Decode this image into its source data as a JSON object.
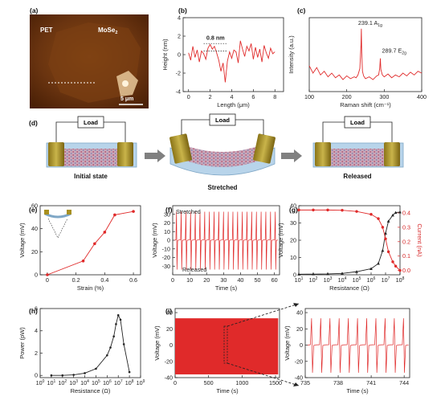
{
  "panel_labels": {
    "a": "(a)",
    "b": "(b)",
    "c": "(c)",
    "d": "(d)",
    "e": "(e)",
    "f": "(f)",
    "g": "(g)",
    "h": "(h)",
    "i": "(i)"
  },
  "afm": {
    "pet_label": "PET",
    "mose2_label": "MoSe",
    "mose2_sub": "2",
    "scale_label": "5 μm"
  },
  "colors": {
    "red": "#e02a2a",
    "black": "#222222",
    "afm_dark": "#5a2a08",
    "afm_light": "#c87a30",
    "substrate": "#b8d4ea",
    "electrode": "#a89020"
  },
  "schematic": {
    "load_label": "Load",
    "states": [
      "Initial state",
      "Stretched",
      "Released"
    ]
  },
  "chart_data": [
    {
      "id": "b",
      "type": "line",
      "xlabel": "Length (μm)",
      "ylabel": "Height (nm)",
      "xlim": [
        -0.5,
        8.8
      ],
      "ylim": [
        -4,
        4
      ],
      "xticks": [
        0,
        2,
        4,
        6,
        8
      ],
      "yticks": [
        -4,
        -2,
        0,
        2,
        4
      ],
      "annotation": "0.8 nm",
      "series": [
        {
          "color": "red",
          "x": [
            0,
            0.2,
            0.4,
            0.6,
            0.8,
            1,
            1.2,
            1.4,
            1.6,
            1.8,
            2,
            2.2,
            2.4,
            2.6,
            2.8,
            3,
            3.2,
            3.4,
            3.6,
            3.8,
            4,
            4.2,
            4.4,
            4.6,
            4.8,
            5,
            5.2,
            5.4,
            5.6,
            5.8,
            6,
            6.2,
            6.4,
            6.6,
            6.8,
            7,
            7.2,
            7.4,
            7.6,
            7.8,
            8
          ],
          "y": [
            0.2,
            -0.6,
            0.9,
            -0.3,
            0.5,
            -0.8,
            0.4,
            0.1,
            -0.5,
            0.7,
            1.1,
            0.6,
            0.9,
            0.2,
            -0.6,
            -1.8,
            -0.9,
            -3.0,
            -0.7,
            0.3,
            -0.4,
            0.5,
            0.3,
            -0.9,
            1.5,
            0.6,
            -0.2,
            0.9,
            0.4,
            1.2,
            -0.5,
            0.8,
            -0.3,
            0.6,
            -0.8,
            1.0,
            0.2,
            -0.4,
            0.7,
            0.1,
            0.3
          ]
        }
      ]
    },
    {
      "id": "c",
      "type": "line",
      "xlabel": "Raman shift (cm⁻¹)",
      "ylabel": "Intensity (a.u.)",
      "xlim": [
        100,
        400
      ],
      "xticks": [
        100,
        200,
        300,
        400
      ],
      "peaks": [
        {
          "x": 239.1,
          "label": "239.1 A",
          "sub": "1g"
        },
        {
          "x": 289.7,
          "label": "289.7 E",
          "sub": "2g"
        }
      ],
      "series": [
        {
          "color": "red",
          "x": [
            100,
            110,
            120,
            130,
            140,
            150,
            160,
            170,
            180,
            190,
            200,
            210,
            220,
            225,
            230,
            235,
            238,
            239,
            240,
            242,
            245,
            250,
            260,
            270,
            280,
            285,
            288,
            289.7,
            291,
            295,
            300,
            310,
            320,
            330,
            340,
            350,
            360,
            370,
            380,
            390,
            400
          ],
          "y": [
            0.48,
            0.4,
            0.46,
            0.38,
            0.42,
            0.36,
            0.4,
            0.35,
            0.38,
            0.33,
            0.37,
            0.34,
            0.36,
            0.35,
            0.38,
            0.45,
            0.7,
            0.88,
            0.62,
            0.42,
            0.37,
            0.34,
            0.36,
            0.33,
            0.37,
            0.38,
            0.45,
            0.56,
            0.44,
            0.38,
            0.36,
            0.39,
            0.35,
            0.38,
            0.36,
            0.4,
            0.37,
            0.41,
            0.38,
            0.42,
            0.4
          ]
        }
      ]
    },
    {
      "id": "e",
      "type": "line",
      "xlabel": "Strain (%)",
      "ylabel": "Voltage (mV)",
      "xlim": [
        -0.05,
        0.65
      ],
      "ylim": [
        0,
        60
      ],
      "xticks": [
        0.0,
        0.2,
        0.4,
        0.6
      ],
      "yticks": [
        0,
        20,
        40,
        60
      ],
      "series": [
        {
          "color": "red",
          "x": [
            0.0,
            0.25,
            0.33,
            0.4,
            0.47,
            0.6
          ],
          "y": [
            0,
            12,
            27,
            37,
            52,
            55
          ]
        }
      ]
    },
    {
      "id": "f",
      "type": "line",
      "xlabel": "Time (s)",
      "ylabel": "Voltage (mV)",
      "xlim": [
        0,
        63
      ],
      "ylim": [
        -40,
        40
      ],
      "xticks": [
        0,
        10,
        20,
        30,
        40,
        50,
        60
      ],
      "yticks": [
        -30,
        -20,
        -10,
        0,
        10,
        20,
        30
      ],
      "annotations": [
        "Stretched",
        "Released"
      ],
      "pulse_count": 22,
      "pulse_max": 33,
      "pulse_min": -34
    },
    {
      "id": "g",
      "type": "line",
      "xlabel": "Resistance (Ω)",
      "ylabel": "Voltage (mV)",
      "y2label": "Current (nA)",
      "xlog": true,
      "xlim": [
        1,
        8
      ],
      "ylim": [
        0,
        40
      ],
      "y2lim": [
        -0.03,
        0.45
      ],
      "xticks": [
        1,
        2,
        3,
        4,
        5,
        6,
        7,
        8
      ],
      "yticks": [
        0,
        10,
        20,
        30,
        40
      ],
      "y2ticks": [
        0.0,
        0.1,
        0.2,
        0.3,
        0.4
      ],
      "series": [
        {
          "name": "voltage",
          "axis": "left",
          "color": "black",
          "x": [
            1,
            2,
            3,
            4,
            5,
            6,
            6.5,
            6.8,
            7,
            7.2,
            7.5,
            7.7,
            8
          ],
          "y": [
            0.3,
            0.4,
            0.5,
            0.8,
            1.8,
            3.5,
            6.5,
            14,
            24,
            31,
            34.5,
            36,
            36.3
          ]
        },
        {
          "name": "current",
          "axis": "right",
          "color": "red",
          "x": [
            1,
            2,
            3,
            4,
            5,
            6,
            6.5,
            6.8,
            7,
            7.2,
            7.5,
            7.7,
            8
          ],
          "y": [
            0.42,
            0.42,
            0.42,
            0.418,
            0.41,
            0.39,
            0.36,
            0.3,
            0.22,
            0.13,
            0.06,
            0.03,
            0.0
          ]
        }
      ]
    },
    {
      "id": "h",
      "type": "line",
      "xlabel": "Resistance (Ω)",
      "ylabel": "Power (pW)",
      "xlog": true,
      "xlim": [
        0,
        9
      ],
      "ylim": [
        -0.2,
        6
      ],
      "xticks": [
        0,
        1,
        2,
        3,
        4,
        5,
        6,
        7,
        8,
        9
      ],
      "yticks": [
        0,
        2,
        4,
        6
      ],
      "series": [
        {
          "color": "black",
          "x": [
            1,
            2,
            3,
            4,
            5,
            6,
            6.3,
            6.6,
            6.8,
            7,
            7.2,
            7.5,
            8
          ],
          "y": [
            0.0,
            0.0,
            0.05,
            0.2,
            0.6,
            1.8,
            2.5,
            3.5,
            4.6,
            5.4,
            5.0,
            2.8,
            0.3
          ]
        }
      ]
    },
    {
      "id": "i1",
      "type": "line",
      "xlabel": "Time (s)",
      "ylabel": "Voltage (mV)",
      "xlim": [
        0,
        1560
      ],
      "ylim": [
        -40,
        45
      ],
      "xticks": [
        0,
        500,
        1000,
        1500
      ],
      "yticks": [
        -40,
        -20,
        0,
        20,
        40
      ],
      "band_max": 33,
      "band_min": -36
    },
    {
      "id": "i2",
      "type": "line",
      "xlabel": "Time (s)",
      "xlim": [
        735,
        744.5
      ],
      "ylim": [
        -40,
        45
      ],
      "xticks": [
        735,
        738,
        741,
        744
      ],
      "pulse_count": 11,
      "pulse_max": 33,
      "pulse_min": -34
    }
  ]
}
